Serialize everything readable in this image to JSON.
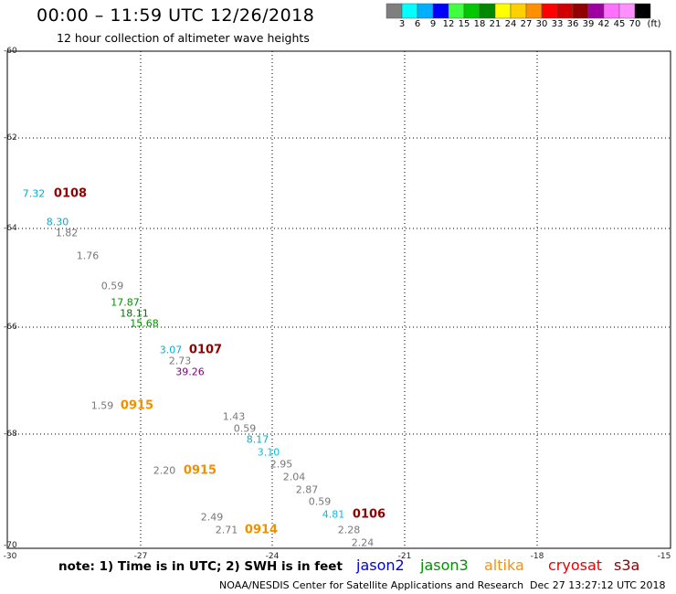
{
  "header": {
    "title": "00:00 – 11:59 UTC 12/26/2018",
    "subtitle": "12 hour collection of altimeter wave heights"
  },
  "colorbar": {
    "colors": [
      "#7f7f7f",
      "#00ffff",
      "#00b0ff",
      "#0000ff",
      "#40ff40",
      "#00c800",
      "#008800",
      "#ffff00",
      "#ffd000",
      "#ff9000",
      "#ff0000",
      "#d00000",
      "#900000",
      "#a000a0",
      "#ff70ff",
      "#ff90ff",
      "#000000"
    ],
    "labels": [
      "3",
      "6",
      "9",
      "12",
      "15",
      "18",
      "21",
      "24",
      "27",
      "30",
      "33",
      "36",
      "39",
      "42",
      "45",
      "70",
      "(ft)"
    ]
  },
  "axes": {
    "lat_labels": [
      "-60",
      "-62",
      "-64",
      "-66",
      "-68",
      "-70"
    ],
    "lon_labels": [
      "-30",
      "-27",
      "-24",
      "-21",
      "-18",
      "-15"
    ]
  },
  "observations": [
    {
      "text": "7.32",
      "color": "#00aed0"
    },
    {
      "text": "8.30",
      "color": "#00aed0"
    },
    {
      "text": "1.82",
      "color": "#777777"
    },
    {
      "text": "1.76",
      "color": "#777777"
    },
    {
      "text": "0.59",
      "color": "#777777"
    },
    {
      "text": "17.87",
      "color": "#009000"
    },
    {
      "text": "18.11",
      "color": "#007000"
    },
    {
      "text": "15.68",
      "color": "#009000"
    },
    {
      "text": "3.07",
      "color": "#00aed0"
    },
    {
      "text": "2.73",
      "color": "#777777"
    },
    {
      "text": "39.26",
      "color": "#800080"
    },
    {
      "text": "1.59",
      "color": "#777777"
    },
    {
      "text": "1.43",
      "color": "#777777"
    },
    {
      "text": "0.59",
      "color": "#777777"
    },
    {
      "text": "8.17",
      "color": "#00aed0"
    },
    {
      "text": "3.10",
      "color": "#00c0e0"
    },
    {
      "text": "2.95",
      "color": "#777777"
    },
    {
      "text": "2.04",
      "color": "#777777"
    },
    {
      "text": "2.20",
      "color": "#777777"
    },
    {
      "text": "2.87",
      "color": "#777777"
    },
    {
      "text": "0.59",
      "color": "#777777"
    },
    {
      "text": "4.81",
      "color": "#00c0e0"
    },
    {
      "text": "2.49",
      "color": "#777777"
    },
    {
      "text": "2.71",
      "color": "#777777"
    },
    {
      "text": "2.28",
      "color": "#777777"
    },
    {
      "text": "2.24",
      "color": "#777777"
    }
  ],
  "pass_times": [
    {
      "text": "0108",
      "color": "#900000"
    },
    {
      "text": "0107",
      "color": "#900000"
    },
    {
      "text": "0915",
      "color": "#f09000"
    },
    {
      "text": "0915",
      "color": "#f09000"
    },
    {
      "text": "0106",
      "color": "#900000"
    },
    {
      "text": "0914",
      "color": "#f09000"
    }
  ],
  "note": "note: 1) Time is in UTC; 2) SWH is in feet",
  "legend": [
    {
      "name": "jason2",
      "color": "#0000dd"
    },
    {
      "name": "jason3",
      "color": "#009000"
    },
    {
      "name": "altika",
      "color": "#ff9000"
    },
    {
      "name": "cryosat",
      "color": "#ee0000"
    },
    {
      "name": "s3a",
      "color": "#900000"
    }
  ],
  "footer": {
    "credit": "NOAA/NESDIS Center for Satellite Applications and Research",
    "timestamp": "Dec 27 13:27:12 UTC 2018"
  }
}
